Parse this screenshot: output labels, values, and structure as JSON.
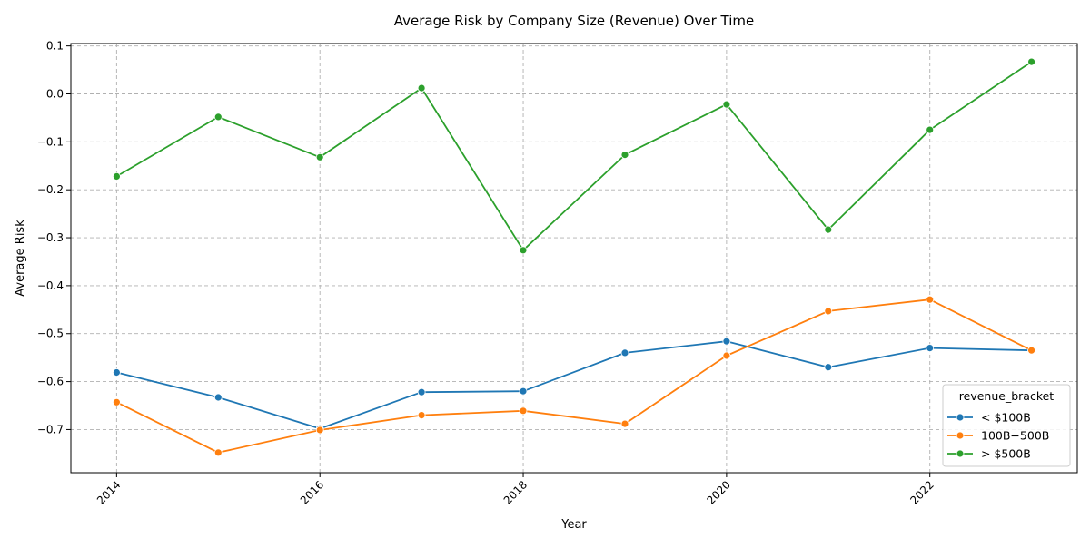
{
  "chart_data": {
    "type": "line",
    "title": "Average Risk by Company Size (Revenue) Over Time",
    "xlabel": "Year",
    "ylabel": "Average Risk",
    "x": [
      2014,
      2015,
      2016,
      2017,
      2018,
      2019,
      2020,
      2021,
      2022,
      2023
    ],
    "x_ticks": [
      "2014",
      "2016",
      "2018",
      "2020",
      "2022"
    ],
    "y_ticks": [
      "0.1",
      "0.0",
      "−0.1",
      "−0.2",
      "−0.3",
      "−0.4",
      "−0.5",
      "−0.6",
      "−0.7"
    ],
    "xlim": [
      2013.55,
      2023.45
    ],
    "ylim": [
      -0.79,
      0.105
    ],
    "grid": true,
    "legend_title": "revenue_bracket",
    "legend_position": "lower right",
    "series": [
      {
        "name": "< $100B",
        "color": "#1f77b4",
        "values": [
          -0.581,
          -0.633,
          -0.698,
          -0.622,
          -0.62,
          -0.54,
          -0.516,
          -0.57,
          -0.53,
          -0.535
        ]
      },
      {
        "name": "$100B - $500B",
        "legend_label": "100B−500B",
        "color": "#ff7f0e",
        "values": [
          -0.643,
          -0.748,
          -0.701,
          -0.67,
          -0.661,
          -0.688,
          -0.546,
          -0.453,
          -0.429,
          -0.535
        ]
      },
      {
        "name": "> $500B",
        "color": "#2ca02c",
        "values": [
          -0.172,
          -0.048,
          -0.132,
          0.012,
          -0.326,
          -0.127,
          -0.022,
          -0.283,
          -0.075,
          0.067
        ]
      }
    ]
  }
}
